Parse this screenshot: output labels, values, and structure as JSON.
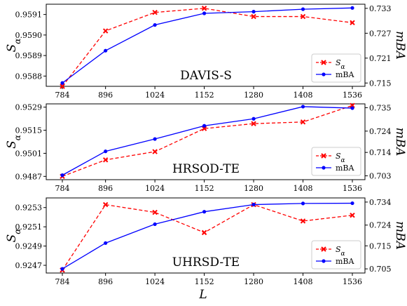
{
  "xlabel": "L",
  "chart_data": [
    {
      "type": "line",
      "title": "DAVIS-S",
      "x": [
        784,
        896,
        1024,
        1152,
        1280,
        1408,
        1536
      ],
      "left_axis": {
        "label": "S_α",
        "ticks": [
          "0.9588",
          "0.9589",
          "0.9590",
          "0.9591"
        ],
        "tick_values": [
          0.9588,
          0.9589,
          0.959,
          0.9591
        ],
        "ylim": [
          0.95875,
          0.95915
        ]
      },
      "right_axis": {
        "label": "mBA",
        "ticks": [
          "0.715",
          "0.721",
          "0.727",
          "0.733"
        ],
        "tick_values": [
          0.715,
          0.721,
          0.727,
          0.733
        ],
        "ylim": [
          0.7142,
          0.734
        ]
      },
      "series": [
        {
          "name": "S_α",
          "axis": "left",
          "color": "#ff0000",
          "style": "dashed",
          "marker": "x",
          "values": [
            0.95875,
            0.95902,
            0.95911,
            0.95913,
            0.95909,
            0.95909,
            0.95906
          ]
        },
        {
          "name": "mBA",
          "axis": "right",
          "color": "#0000ff",
          "style": "solid",
          "marker": "o",
          "values": [
            0.715,
            0.7228,
            0.729,
            0.7318,
            0.7322,
            0.7328,
            0.7331
          ]
        }
      ],
      "legend": "lower-right"
    },
    {
      "type": "line",
      "title": "HRSOD-TE",
      "x": [
        784,
        896,
        1024,
        1152,
        1280,
        1408,
        1536
      ],
      "left_axis": {
        "label": "S_α",
        "ticks": [
          "0.9487",
          "0.9501",
          "0.9515",
          "0.9529"
        ],
        "tick_values": [
          0.9487,
          0.9501,
          0.9515,
          0.9529
        ],
        "ylim": [
          0.9485,
          0.9531
        ]
      },
      "right_axis": {
        "label": "mBA",
        "ticks": [
          "0.703",
          "0.714",
          "0.724",
          "0.735"
        ],
        "tick_values": [
          0.703,
          0.714,
          0.724,
          0.735
        ],
        "ylim": [
          0.7012,
          0.7368
        ]
      },
      "series": [
        {
          "name": "S_α",
          "axis": "left",
          "color": "#ff0000",
          "style": "dashed",
          "marker": "x",
          "values": [
            0.9487,
            0.9497,
            0.9502,
            0.9516,
            0.9519,
            0.952,
            0.953
          ]
        },
        {
          "name": "mBA",
          "axis": "right",
          "color": "#0000ff",
          "style": "solid",
          "marker": "o",
          "values": [
            0.7033,
            0.7145,
            0.7203,
            0.7265,
            0.7298,
            0.7355,
            0.7348
          ]
        }
      ],
      "legend": "lower-right"
    },
    {
      "type": "line",
      "title": "UHRSD-TE",
      "x": [
        784,
        896,
        1024,
        1152,
        1280,
        1408,
        1536
      ],
      "left_axis": {
        "label": "S_α",
        "ticks": [
          "0.9247",
          "0.9249",
          "0.9251",
          "0.9253"
        ],
        "tick_values": [
          0.9247,
          0.9249,
          0.9251,
          0.9253
        ],
        "ylim": [
          0.92462,
          0.9254
        ]
      },
      "right_axis": {
        "label": "mBA",
        "ticks": [
          "0.705",
          "0.715",
          "0.724",
          "0.734"
        ],
        "tick_values": [
          0.705,
          0.715,
          0.724,
          0.734
        ],
        "ylim": [
          0.7032,
          0.7358
        ]
      },
      "series": [
        {
          "name": "S_α",
          "axis": "left",
          "color": "#ff0000",
          "style": "dashed",
          "marker": "x",
          "values": [
            0.92465,
            0.92533,
            0.92525,
            0.92504,
            0.92533,
            0.92516,
            0.92522
          ]
        },
        {
          "name": "mBA",
          "axis": "right",
          "color": "#0000ff",
          "style": "solid",
          "marker": "o",
          "values": [
            0.705,
            0.7162,
            0.7244,
            0.7298,
            0.7329,
            0.7334,
            0.7335
          ]
        }
      ],
      "legend": "lower-right"
    }
  ]
}
